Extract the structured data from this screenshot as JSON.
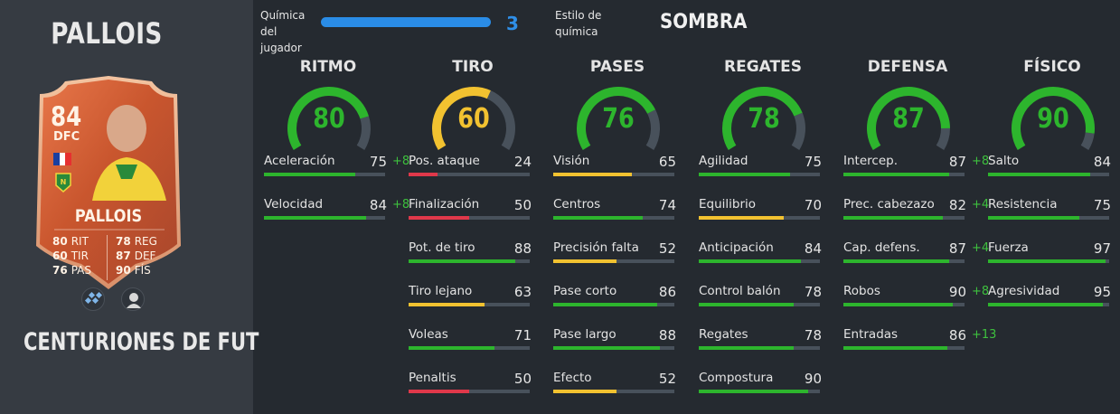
{
  "player": {
    "name": "PALLOIS",
    "card_type": "CENTURIONES DE FUT",
    "card": {
      "rating": "84",
      "position": "DFC",
      "name": "PALLOIS",
      "stats": [
        {
          "value": "80",
          "label": "RIT"
        },
        {
          "value": "60",
          "label": "TIR"
        },
        {
          "value": "76",
          "label": "PAS"
        },
        {
          "value": "78",
          "label": "REG"
        },
        {
          "value": "87",
          "label": "DEF"
        },
        {
          "value": "90",
          "label": "FÍS"
        }
      ],
      "flag_colors": [
        "#1a3fa0",
        "#ffffff",
        "#e63030"
      ],
      "club_badge": "fc-nantes-badge",
      "icons": [
        "skill-moves-icon",
        "player-face-icon"
      ]
    }
  },
  "chemistry": {
    "label": "Química del jugador",
    "label_line1": "Química del",
    "label_line2": "jugador",
    "value": "3",
    "max": 3,
    "style_label_line1": "Estilo de",
    "style_label_line2": "química",
    "style_value": "SOMBRA"
  },
  "colors": {
    "green": "#2db52d",
    "yellow": "#f2c230",
    "red": "#e0384a",
    "blue": "#2a8ce6",
    "boost": "#3ec13e",
    "track": "#48515b"
  },
  "categories": [
    {
      "title": "RITMO",
      "value": 80,
      "color": "green",
      "stats": [
        {
          "label": "Aceleración",
          "value": 75,
          "boost": "+8",
          "color": "green"
        },
        {
          "label": "Velocidad",
          "value": 84,
          "boost": "+8",
          "color": "green"
        }
      ]
    },
    {
      "title": "TIRO",
      "value": 60,
      "color": "yellow",
      "stats": [
        {
          "label": "Pos. ataque",
          "value": 24,
          "boost": "",
          "color": "red"
        },
        {
          "label": "Finalización",
          "value": 50,
          "boost": "",
          "color": "red"
        },
        {
          "label": "Pot. de tiro",
          "value": 88,
          "boost": "",
          "color": "green"
        },
        {
          "label": "Tiro lejano",
          "value": 63,
          "boost": "",
          "color": "yellow"
        },
        {
          "label": "Voleas",
          "value": 71,
          "boost": "",
          "color": "green"
        },
        {
          "label": "Penaltis",
          "value": 50,
          "boost": "",
          "color": "red"
        }
      ]
    },
    {
      "title": "PASES",
      "value": 76,
      "color": "green",
      "stats": [
        {
          "label": "Visión",
          "value": 65,
          "boost": "",
          "color": "yellow"
        },
        {
          "label": "Centros",
          "value": 74,
          "boost": "",
          "color": "green"
        },
        {
          "label": "Precisión falta",
          "value": 52,
          "boost": "",
          "color": "yellow"
        },
        {
          "label": "Pase corto",
          "value": 86,
          "boost": "",
          "color": "green"
        },
        {
          "label": "Pase largo",
          "value": 88,
          "boost": "",
          "color": "green"
        },
        {
          "label": "Efecto",
          "value": 52,
          "boost": "",
          "color": "yellow"
        }
      ]
    },
    {
      "title": "REGATES",
      "value": 78,
      "color": "green",
      "stats": [
        {
          "label": "Agilidad",
          "value": 75,
          "boost": "",
          "color": "green"
        },
        {
          "label": "Equilibrio",
          "value": 70,
          "boost": "",
          "color": "yellow"
        },
        {
          "label": "Anticipación",
          "value": 84,
          "boost": "",
          "color": "green"
        },
        {
          "label": "Control balón",
          "value": 78,
          "boost": "",
          "color": "green"
        },
        {
          "label": "Regates",
          "value": 78,
          "boost": "",
          "color": "green"
        },
        {
          "label": "Compostura",
          "value": 90,
          "boost": "",
          "color": "green"
        }
      ]
    },
    {
      "title": "DEFENSA",
      "value": 87,
      "color": "green",
      "stats": [
        {
          "label": "Intercep.",
          "value": 87,
          "boost": "+8",
          "color": "green"
        },
        {
          "label": "Prec. cabezazo",
          "value": 82,
          "boost": "+4",
          "color": "green"
        },
        {
          "label": "Cap. defens.",
          "value": 87,
          "boost": "+4",
          "color": "green"
        },
        {
          "label": "Robos",
          "value": 90,
          "boost": "+8",
          "color": "green"
        },
        {
          "label": "Entradas",
          "value": 86,
          "boost": "+13",
          "color": "green"
        }
      ]
    },
    {
      "title": "FÍSICO",
      "value": 90,
      "color": "green",
      "stats": [
        {
          "label": "Salto",
          "value": 84,
          "boost": "",
          "color": "green"
        },
        {
          "label": "Resistencia",
          "value": 75,
          "boost": "",
          "color": "green"
        },
        {
          "label": "Fuerza",
          "value": 97,
          "boost": "",
          "color": "green"
        },
        {
          "label": "Agresividad",
          "value": 95,
          "boost": "",
          "color": "green"
        }
      ]
    }
  ]
}
